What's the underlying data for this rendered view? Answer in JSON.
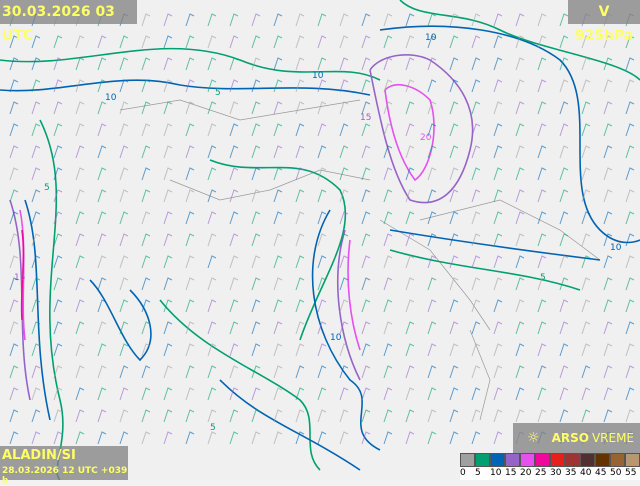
{
  "header": {
    "valid_time": "30.03.2026 03 UTC",
    "field": "V 925hPa"
  },
  "footer": {
    "model": "ALADIN/SI",
    "run": "28.03.2026 12 UTC +039 h"
  },
  "logo": {
    "icon": "sun-crossed-icon",
    "brand": "ARSO",
    "product": "VREME"
  },
  "legend": {
    "items": [
      {
        "label": "0",
        "color": "#a0a0a0"
      },
      {
        "label": "5",
        "color": "#00a070"
      },
      {
        "label": "10",
        "color": "#0064b4"
      },
      {
        "label": "15",
        "color": "#9664c8"
      },
      {
        "label": "20",
        "color": "#e650f0"
      },
      {
        "label": "25",
        "color": "#f0089c"
      },
      {
        "label": "30",
        "color": "#e61e1e"
      },
      {
        "label": "35",
        "color": "#a03232"
      },
      {
        "label": "40",
        "color": "#503030"
      },
      {
        "label": "45",
        "color": "#643200"
      },
      {
        "label": "50",
        "color": "#966432"
      },
      {
        "label": "55",
        "color": "#b9966e"
      }
    ]
  },
  "contour_labels": [
    "10",
    "10",
    "10",
    "5",
    "5",
    "15",
    "10",
    "5",
    "15",
    "20",
    "10",
    "5"
  ]
}
